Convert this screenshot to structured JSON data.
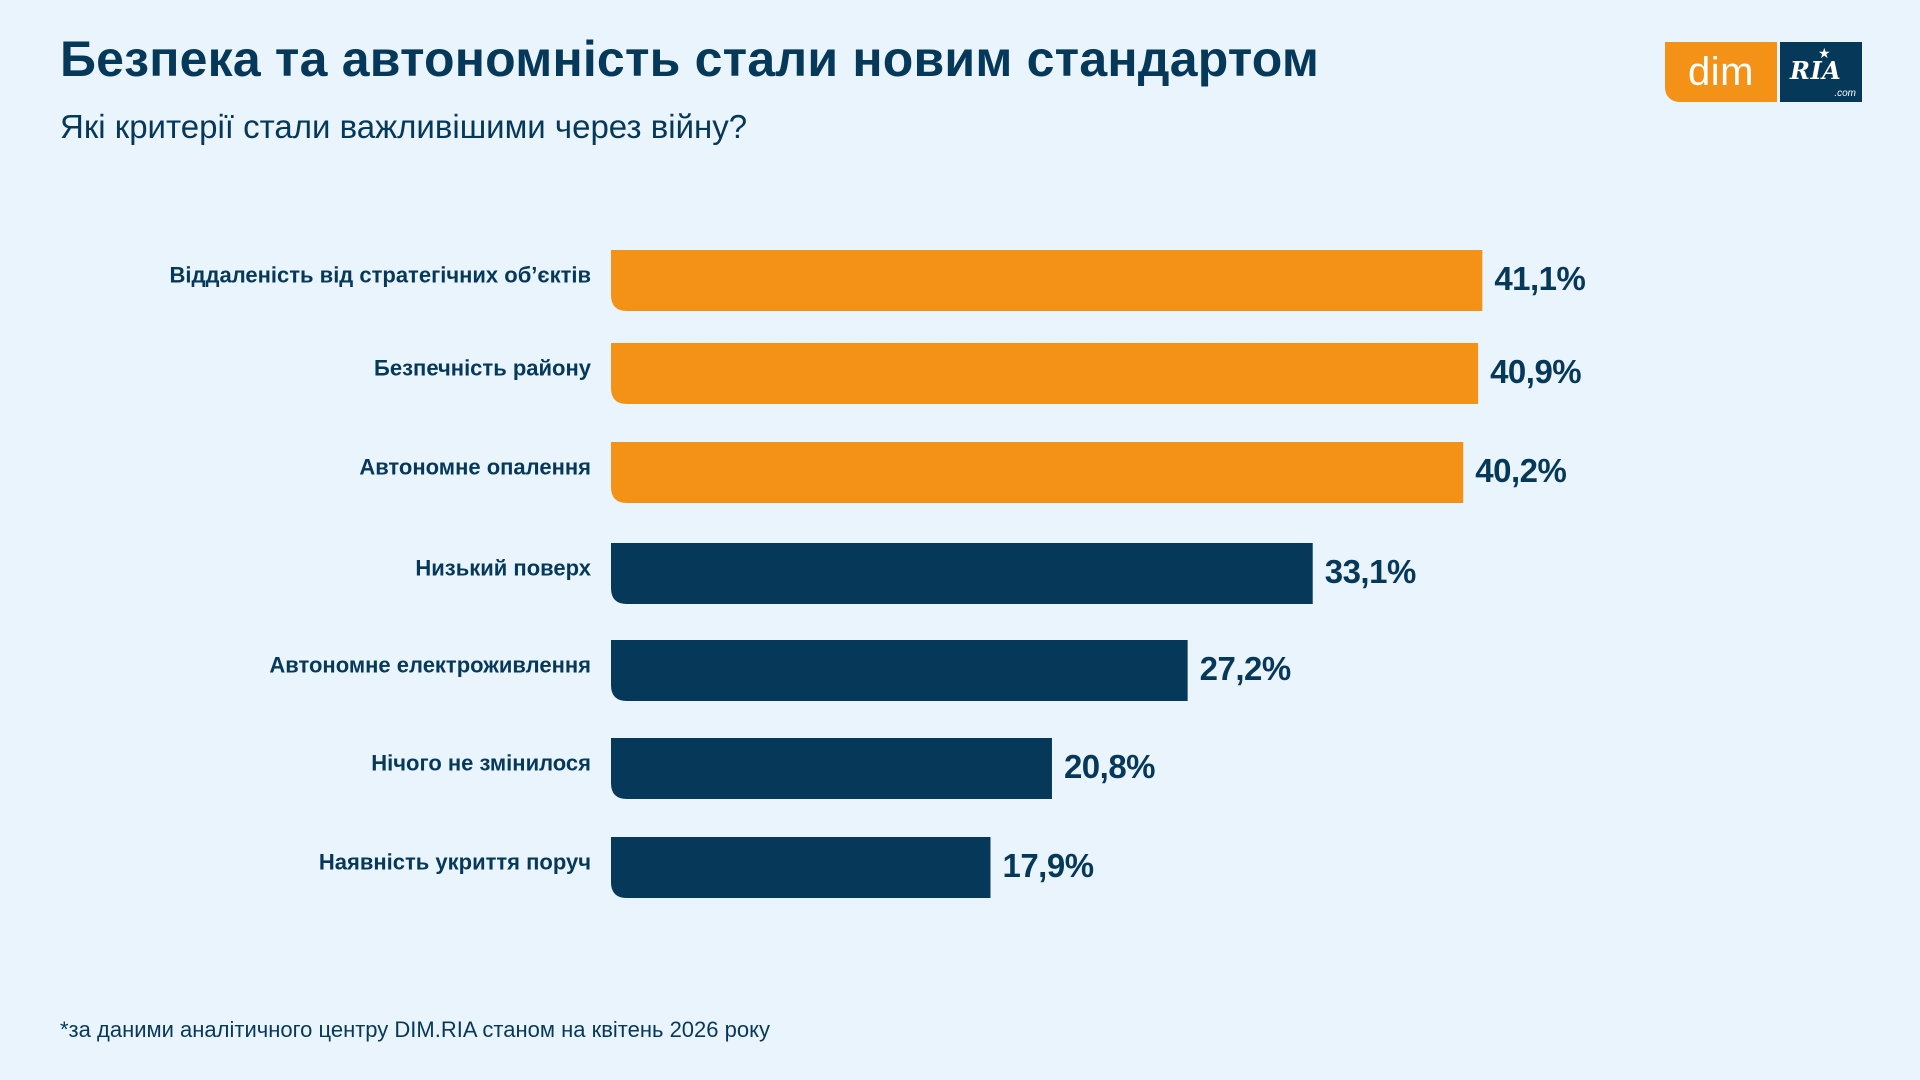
{
  "header": {
    "title": "Безпека та автономність стали новим стандартом",
    "subtitle": "Які критерії стали важливішими через війну?"
  },
  "logo": {
    "dim_text": "dim",
    "ria_text": "RIA",
    "ria_suffix": ".com"
  },
  "footnote": "*за даними аналітичного центру DIM.RIA станом на квітень 2026 року",
  "colors": {
    "background": "#eaf4fc",
    "highlight": "#f39217",
    "primary": "#06385a"
  },
  "chart_data": {
    "type": "bar",
    "orientation": "horizontal",
    "title": "Безпека та автономність стали новим стандартом",
    "subtitle": "Які критерії стали важливішими через війну?",
    "xlabel": "",
    "ylabel": "",
    "unit": "%",
    "grid": false,
    "legend": "none",
    "categories": [
      "Віддаленість від стратегічних об’єктів",
      "Безпечність району",
      "Автономне опалення",
      "Низький поверх",
      "Автономне електроживлення",
      "Нічого не змінилося",
      "Наявність укриття поруч"
    ],
    "values": [
      41.1,
      40.9,
      40.2,
      33.1,
      27.2,
      20.8,
      17.9
    ],
    "value_labels": [
      "41,1%",
      "40,9%",
      "40,2%",
      "33,1%",
      "27,2%",
      "20,8%",
      "17,9%"
    ],
    "bar_colors": [
      "#f39217",
      "#f39217",
      "#f39217",
      "#06385a",
      "#06385a",
      "#06385a",
      "#06385a"
    ]
  }
}
